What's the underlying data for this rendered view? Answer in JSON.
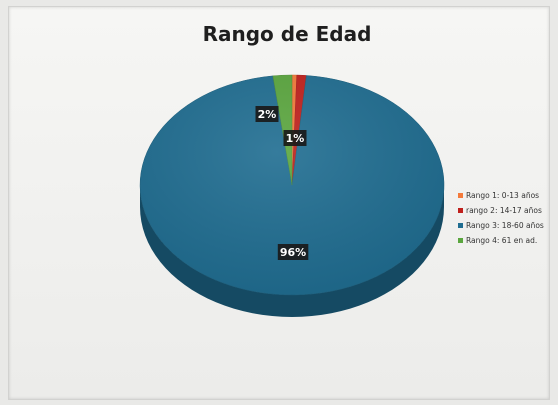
{
  "chart_data": {
    "type": "pie",
    "title": "Rango de Edad",
    "categories": [
      "Rango 1: 0-13 años",
      "rango 2: 14-17 años",
      "Rango 3: 18-60 años",
      "Rango 4: 61 en ad."
    ],
    "values": [
      0.5,
      1,
      96,
      2
    ],
    "data_labels": [
      "",
      "1%",
      "96%",
      "2%"
    ],
    "colors": [
      "#f47a3a",
      "#c0201c",
      "#1f6d91",
      "#5aa63e"
    ],
    "legend_position": "right"
  }
}
